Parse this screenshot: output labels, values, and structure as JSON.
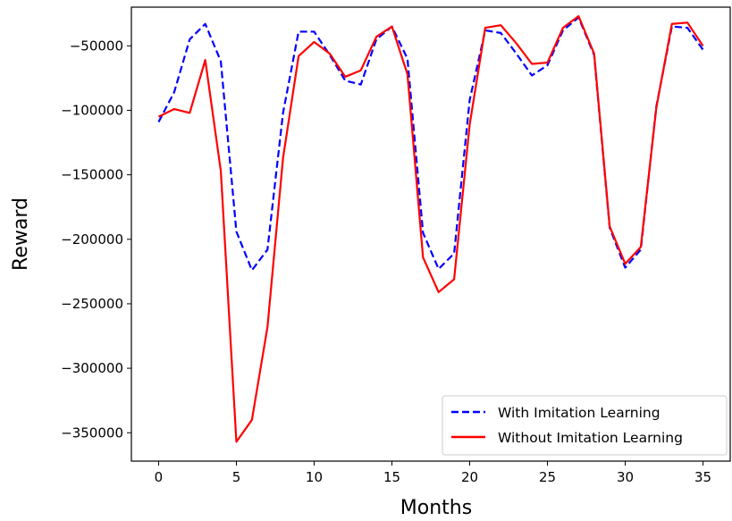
{
  "chart_data": {
    "type": "line",
    "title": "",
    "xlabel": "Months",
    "ylabel": "Reward",
    "xlim": [
      -1.75,
      36.75
    ],
    "ylim": [
      -372000,
      -20000
    ],
    "xticks": [
      0,
      5,
      10,
      15,
      20,
      25,
      30,
      35
    ],
    "yticks": [
      -350000,
      -300000,
      -250000,
      -200000,
      -150000,
      -100000,
      -50000
    ],
    "xtick_labels": [
      "0",
      "5",
      "10",
      "15",
      "20",
      "25",
      "30",
      "35"
    ],
    "ytick_labels": [
      "−350000",
      "−300000",
      "−250000",
      "−200000",
      "−150000",
      "−100000",
      "−50000"
    ],
    "grid": false,
    "legend_position": "lower-right",
    "x": [
      0,
      1,
      2,
      3,
      4,
      5,
      6,
      7,
      8,
      9,
      10,
      11,
      12,
      13,
      14,
      15,
      16,
      17,
      18,
      19,
      20,
      21,
      22,
      23,
      24,
      25,
      26,
      27,
      28,
      29,
      30,
      31,
      32,
      33,
      34,
      35
    ],
    "series": [
      {
        "name": "With Imitation Learning",
        "color": "#0000ff",
        "line_style": "dashed",
        "values": [
          -109000,
          -86000,
          -45000,
          -33000,
          -62000,
          -194000,
          -224000,
          -208000,
          -102000,
          -39000,
          -39000,
          -57000,
          -77000,
          -80000,
          -45000,
          -35000,
          -60000,
          -195000,
          -223000,
          -211000,
          -92000,
          -38000,
          -40000,
          -56000,
          -73000,
          -65000,
          -38000,
          -28000,
          -57000,
          -191000,
          -222000,
          -208000,
          -97000,
          -35000,
          -36000,
          -53000
        ]
      },
      {
        "name": "Without Imitation Learning",
        "color": "#ff0000",
        "line_style": "solid",
        "values": [
          -105000,
          -99000,
          -102000,
          -61000,
          -147000,
          -357000,
          -340000,
          -268000,
          -137000,
          -58000,
          -47000,
          -56000,
          -74000,
          -69000,
          -43000,
          -35000,
          -72000,
          -214000,
          -241000,
          -231000,
          -111000,
          -36000,
          -34000,
          -48000,
          -64000,
          -63000,
          -36000,
          -27000,
          -56000,
          -190000,
          -219000,
          -206000,
          -98000,
          -33000,
          -32000,
          -50000
        ]
      }
    ]
  }
}
